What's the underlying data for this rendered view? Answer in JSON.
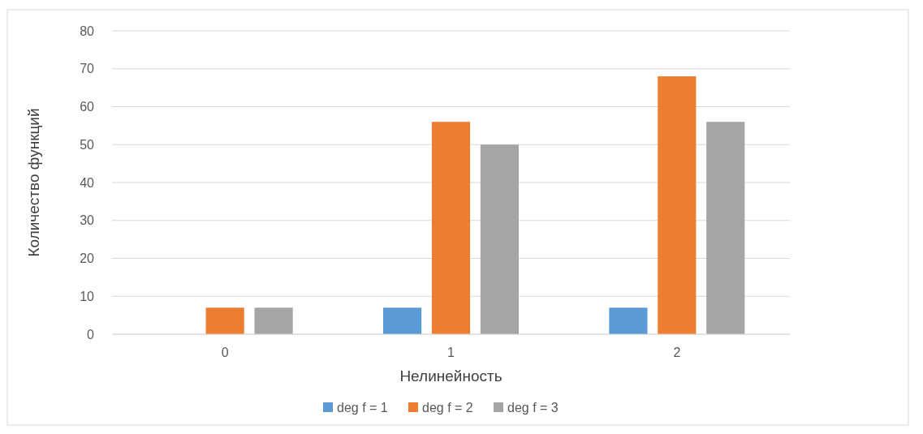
{
  "chart_data": {
    "type": "bar",
    "xlabel": "Нелинейность",
    "ylabel": "Количество функций",
    "categories": [
      "0",
      "1",
      "2"
    ],
    "series": [
      {
        "name": "deg f = 1",
        "color": "#5b9bd5",
        "values": [
          0,
          7,
          7
        ]
      },
      {
        "name": "deg f = 2",
        "color": "#ed7d31",
        "values": [
          7,
          56,
          68
        ]
      },
      {
        "name": "deg f = 3",
        "color": "#a5a5a5",
        "values": [
          7,
          50,
          56
        ]
      }
    ],
    "ylim": [
      0,
      80
    ],
    "yticks": [
      0,
      10,
      20,
      30,
      40,
      50,
      60,
      70,
      80
    ],
    "grid": "y",
    "legend": "bottom"
  }
}
